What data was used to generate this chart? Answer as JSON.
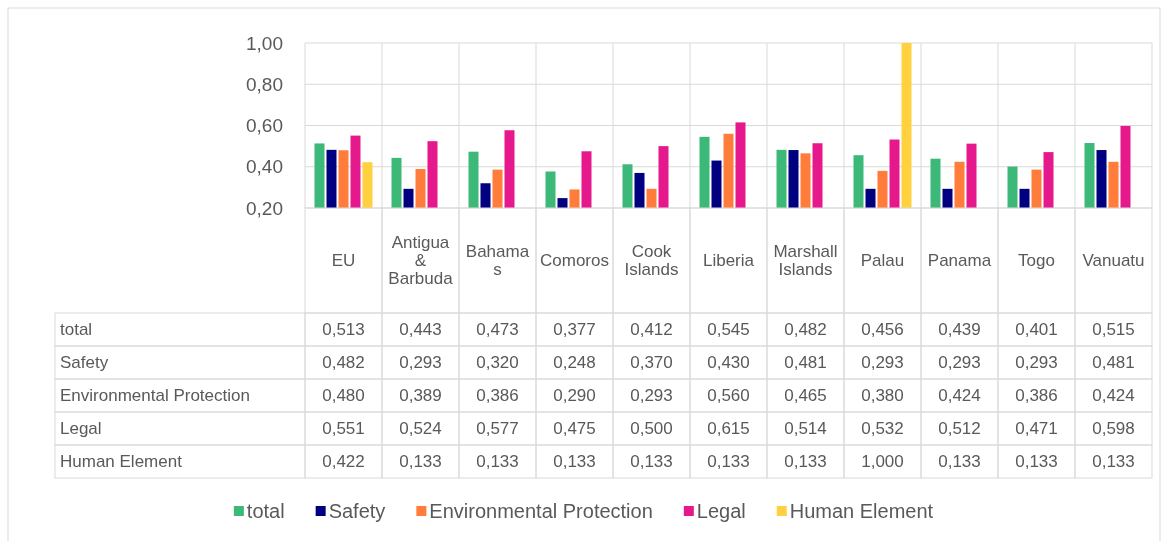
{
  "chart_data": {
    "type": "bar",
    "categories": [
      "EU",
      "Antigua & Barbuda",
      "Bahamas",
      "Comoros",
      "Cook Islands",
      "Liberia",
      "Marshall Islands",
      "Palau",
      "Panama",
      "Togo",
      "Vanuatu"
    ],
    "series": [
      {
        "name": "total",
        "color": "#3cb878",
        "values": [
          0.513,
          0.443,
          0.473,
          0.377,
          0.412,
          0.545,
          0.482,
          0.456,
          0.439,
          0.401,
          0.515
        ],
        "value_labels": [
          "0,513",
          "0,443",
          "0,473",
          "0,377",
          "0,412",
          "0,545",
          "0,482",
          "0,456",
          "0,439",
          "0,401",
          "0,515"
        ]
      },
      {
        "name": "Safety",
        "color": "#000080",
        "values": [
          0.482,
          0.293,
          0.32,
          0.248,
          0.37,
          0.43,
          0.481,
          0.293,
          0.293,
          0.293,
          0.481
        ],
        "value_labels": [
          "0,482",
          "0,293",
          "0,320",
          "0,248",
          "0,370",
          "0,430",
          "0,481",
          "0,293",
          "0,293",
          "0,293",
          "0,481"
        ]
      },
      {
        "name": "Environmental Protection",
        "color": "#ff7c3a",
        "values": [
          0.48,
          0.389,
          0.386,
          0.29,
          0.293,
          0.56,
          0.465,
          0.38,
          0.424,
          0.386,
          0.424
        ],
        "value_labels": [
          "0,480",
          "0,389",
          "0,386",
          "0,290",
          "0,293",
          "0,560",
          "0,465",
          "0,380",
          "0,424",
          "0,386",
          "0,424"
        ]
      },
      {
        "name": "Legal",
        "color": "#e6198c",
        "values": [
          0.551,
          0.524,
          0.577,
          0.475,
          0.5,
          0.615,
          0.514,
          0.532,
          0.512,
          0.471,
          0.598
        ],
        "value_labels": [
          "0,551",
          "0,524",
          "0,577",
          "0,475",
          "0,500",
          "0,615",
          "0,514",
          "0,532",
          "0,512",
          "0,471",
          "0,598"
        ]
      },
      {
        "name": "Human Element",
        "color": "#ffd13f",
        "values": [
          0.422,
          null,
          null,
          null,
          null,
          null,
          null,
          1.0,
          null,
          null,
          null
        ],
        "value_labels": [
          "0,422",
          "0,133",
          "0,133",
          "0,133",
          "0,133",
          "0,133",
          "0,133",
          "1,000",
          "0,133",
          "0,133",
          "0,133"
        ]
      }
    ],
    "ylim": [
      0.2,
      1.0
    ],
    "yticks": [
      {
        "value": 0.2,
        "label": "0,20"
      },
      {
        "value": 0.4,
        "label": "0,40"
      },
      {
        "value": 0.6,
        "label": "0,60"
      },
      {
        "value": 0.8,
        "label": "0,80"
      },
      {
        "value": 1.0,
        "label": "1,00"
      }
    ],
    "grid": "y",
    "legend": "bottom"
  }
}
